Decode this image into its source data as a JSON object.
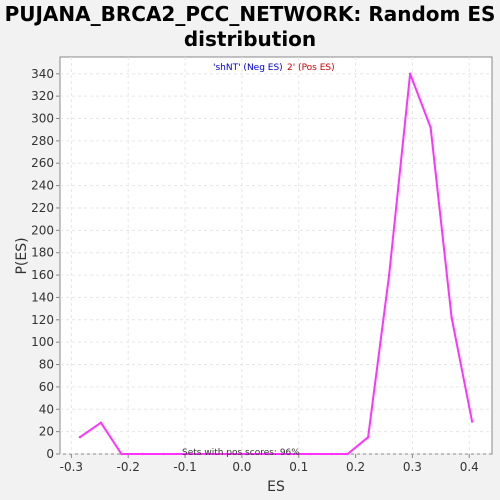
{
  "chart_data": {
    "type": "line",
    "title": "PUJANA_BRCA2_PCC_NETWORK: Random ES distribution",
    "xlabel": "ES",
    "ylabel": "P(ES)",
    "xlim": [
      -0.32,
      0.44
    ],
    "ylim": [
      0,
      355
    ],
    "xticks": [
      -0.3,
      -0.2,
      -0.1,
      0.0,
      0.1,
      0.2,
      0.3,
      0.4
    ],
    "xtick_labels": [
      "-0.3",
      "-0.2",
      "-0.1",
      "0.0",
      "0.1",
      "0.2",
      "0.3",
      "0.4"
    ],
    "yticks": [
      0,
      20,
      40,
      60,
      80,
      100,
      120,
      140,
      160,
      180,
      200,
      220,
      240,
      260,
      280,
      300,
      320,
      340
    ],
    "grid": true,
    "legend": {
      "neg": "'shNT' (Neg ES)",
      "pos": "2' (Pos ES)",
      "neg_color": "#0000cc",
      "pos_color": "#cc0000",
      "placement": "top-center"
    },
    "annotation": "Sets with pos scores: 96%",
    "series": [
      {
        "color": "#ff33ff",
        "x": [
          -0.285,
          -0.248,
          -0.212,
          -0.175,
          -0.138,
          -0.101,
          -0.064,
          -0.027,
          0.01,
          0.047,
          0.084,
          0.121,
          0.158,
          0.186,
          0.222,
          0.259,
          0.296,
          0.332,
          0.369,
          0.405
        ],
        "y": [
          15,
          28,
          0,
          0,
          0,
          0,
          0,
          0,
          0,
          0,
          0,
          0,
          0,
          0,
          15,
          160,
          340,
          292,
          122,
          29
        ]
      }
    ]
  }
}
